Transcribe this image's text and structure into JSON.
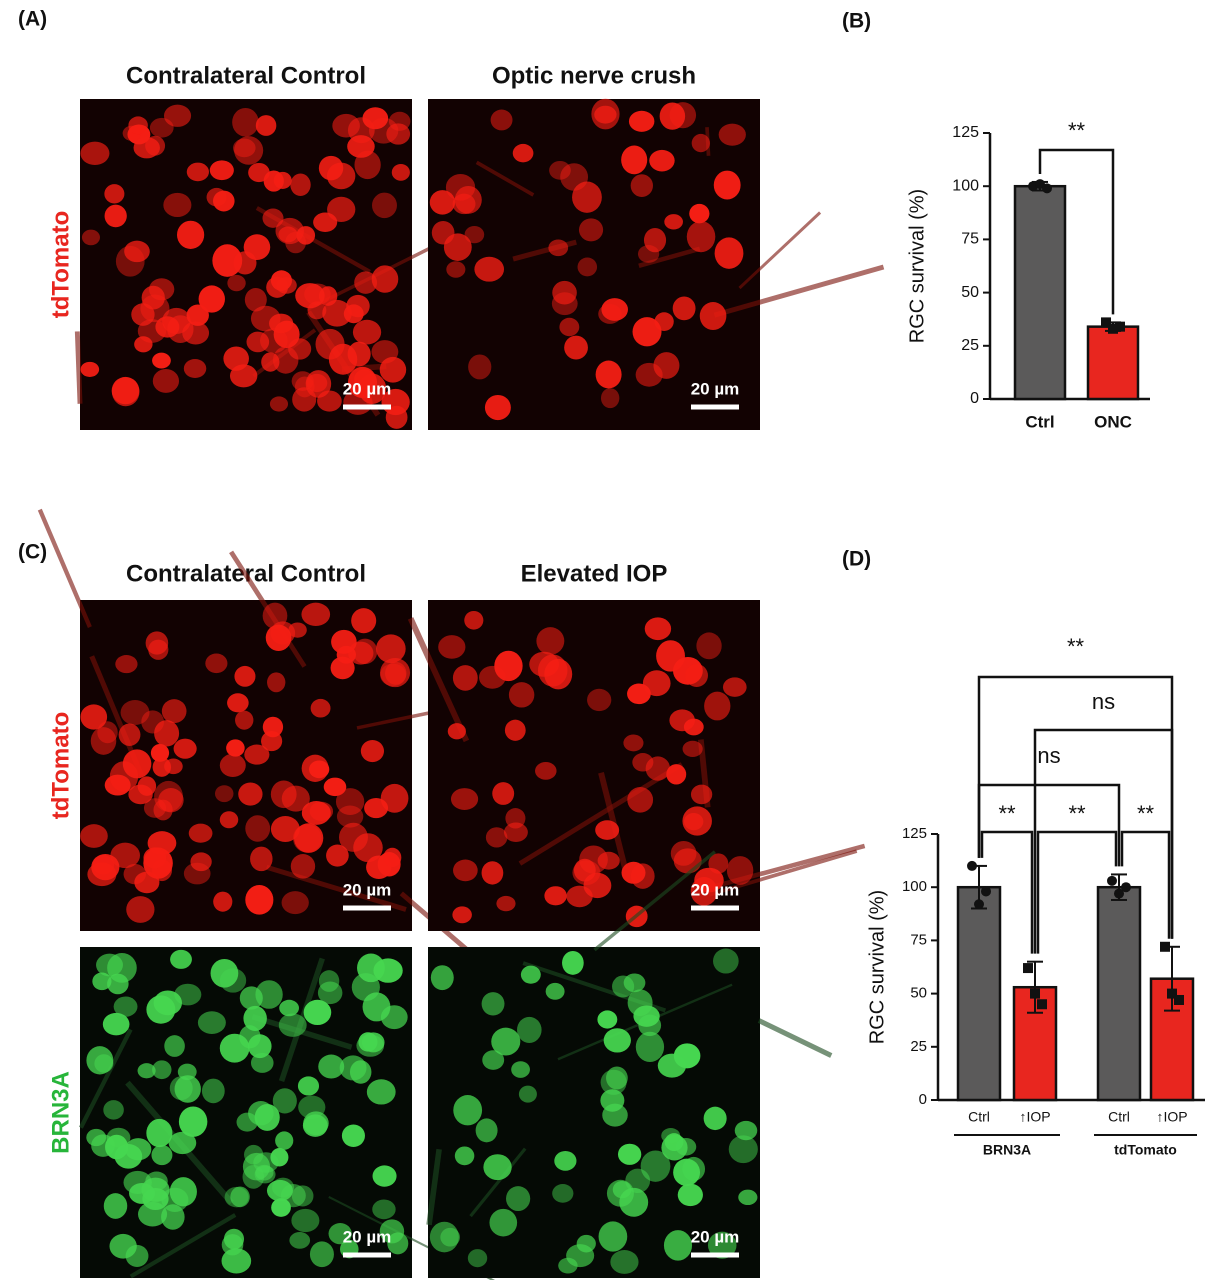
{
  "panels": [
    {
      "label": "(A)"
    },
    {
      "label": "(B)"
    },
    {
      "label": "(C)"
    },
    {
      "label": "(D)"
    }
  ],
  "image_panels": [
    {
      "columns": [
        "Contralateral Control",
        "Optic nerve crush"
      ],
      "rows": [
        {
          "stain": "tdTomato",
          "scale_bars": [
            "20 µm",
            "20 µm"
          ]
        }
      ]
    },
    {
      "columns": [
        "Contralateral Control",
        "Elevated IOP"
      ],
      "rows": [
        {
          "stain": "tdTomato",
          "scale_bars": [
            "20 µm",
            "20 µm"
          ]
        },
        {
          "stain": "BRN3A",
          "scale_bars": [
            "20 µm",
            "20 µm"
          ]
        }
      ]
    }
  ],
  "chart_data": [
    {
      "type": "bar",
      "ylabel": "RGC survival (%)",
      "categories": [
        "Ctrl",
        "ONC"
      ],
      "values": [
        100,
        34
      ],
      "errors": [
        2,
        2
      ],
      "points": [
        [
          100,
          101,
          99
        ],
        [
          36,
          33,
          34
        ]
      ],
      "markers": [
        "circle",
        "square"
      ],
      "colors": [
        "#5b5a5a",
        "#e8261f"
      ],
      "ylim": [
        0,
        125
      ],
      "yticks": [
        0,
        25,
        50,
        75,
        100,
        125
      ],
      "significance": [
        {
          "pair": [
            0,
            1
          ],
          "label": "**"
        }
      ]
    },
    {
      "type": "bar",
      "ylabel": "RGC survival (%)",
      "categories": [
        "Ctrl",
        "↑IOP",
        "Ctrl",
        "↑IOP"
      ],
      "groups": [
        "BRN3A",
        "tdTomato"
      ],
      "values": [
        100,
        53,
        100,
        57
      ],
      "errors": [
        10,
        12,
        6,
        15
      ],
      "points": [
        [
          110,
          92,
          98
        ],
        [
          62,
          50,
          45
        ],
        [
          103,
          97,
          100
        ],
        [
          72,
          50,
          47
        ]
      ],
      "markers": [
        "circle",
        "square",
        "circle",
        "square"
      ],
      "colors": [
        "#5b5a5a",
        "#e8261f",
        "#5b5a5a",
        "#e8261f"
      ],
      "ylim": [
        0,
        125
      ],
      "yticks": [
        0,
        25,
        50,
        75,
        100,
        125
      ],
      "significance": [
        {
          "pair": [
            0,
            1
          ],
          "label": "**"
        },
        {
          "pair": [
            1,
            2
          ],
          "label": "**"
        },
        {
          "pair": [
            2,
            3
          ],
          "label": "**"
        },
        {
          "pair": [
            0,
            2
          ],
          "label": "ns"
        },
        {
          "pair": [
            1,
            3
          ],
          "label": "ns"
        },
        {
          "pair": [
            0,
            3
          ],
          "label": "**"
        }
      ]
    }
  ]
}
